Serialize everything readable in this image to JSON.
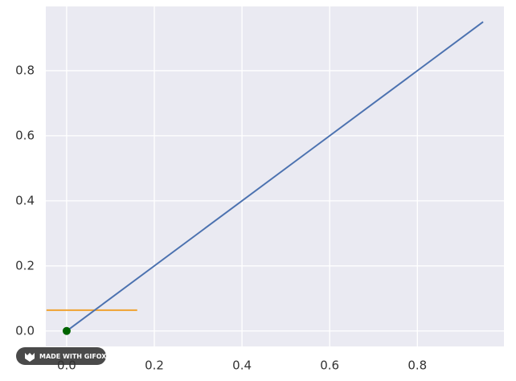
{
  "chart_data": {
    "type": "line",
    "series": [
      {
        "kind": "line",
        "color": "#f0a230",
        "x": [
          -0.046,
          0.161
        ],
        "values": [
          0.064,
          0.064
        ]
      },
      {
        "kind": "line",
        "color": "#4c72b0",
        "x": [
          0,
          0.95
        ],
        "values": [
          0,
          0.95
        ]
      },
      {
        "kind": "scatter",
        "color": "#006400",
        "x": [
          0
        ],
        "values": [
          0
        ]
      }
    ],
    "xlim": [
      -0.0475,
      0.9975
    ],
    "ylim": [
      -0.0475,
      0.9975
    ],
    "xticks": [
      {
        "value": 0,
        "label": "0.0"
      },
      0.2,
      0.4,
      0.6,
      0.8
    ],
    "yticks": [
      {
        "value": 0,
        "label": "0.0"
      },
      0.2,
      0.4,
      0.6,
      0.8
    ],
    "grid": true,
    "watermark": "MADE WITH GIFOX"
  }
}
